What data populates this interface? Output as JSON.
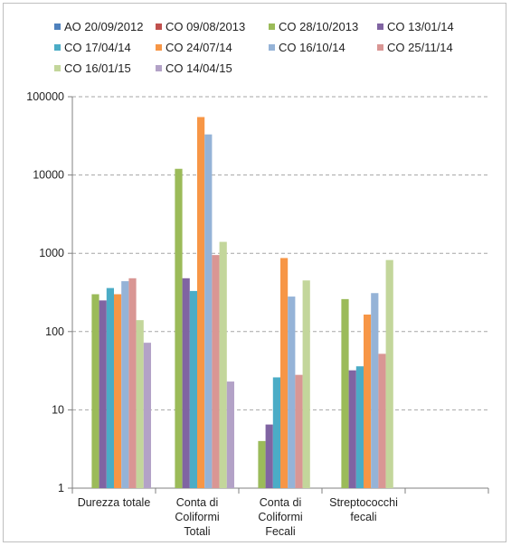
{
  "chart_data": {
    "type": "bar",
    "yscale": "log",
    "ylim": [
      1,
      100000
    ],
    "yticks": [
      "1",
      "10",
      "100",
      "1000",
      "10000",
      "100000"
    ],
    "grid": "horizontal-dashed",
    "legend_position": "top",
    "categories": [
      [
        "Durezza totale"
      ],
      [
        "Conta di",
        "Coliformi",
        "Totali"
      ],
      [
        "Conta di",
        "Coliformi",
        "Fecali"
      ],
      [
        "Streptococchi",
        "fecali"
      ]
    ],
    "series": [
      {
        "name": "AO 20/09/2012",
        "color": "#4f81bd",
        "values": [
          null,
          null,
          null,
          null
        ]
      },
      {
        "name": "CO 09/08/2013",
        "color": "#c0504d",
        "values": [
          null,
          null,
          null,
          null
        ]
      },
      {
        "name": "CO 28/10/2013",
        "color": "#9bbb59",
        "values": [
          300,
          12000,
          4,
          260
        ]
      },
      {
        "name": "CO 13/01/14",
        "color": "#8064a2",
        "values": [
          250,
          480,
          6.5,
          32
        ]
      },
      {
        "name": "CO 17/04/14",
        "color": "#4bacc6",
        "values": [
          360,
          330,
          26,
          36
        ]
      },
      {
        "name": "CO 24/07/14",
        "color": "#f79646",
        "values": [
          300,
          55000,
          870,
          165
        ]
      },
      {
        "name": "CO 16/10/14",
        "color": "#95b3d7",
        "values": [
          440,
          33000,
          280,
          310
        ]
      },
      {
        "name": "CO 25/11/14",
        "color": "#d99694",
        "values": [
          480,
          950,
          28,
          52
        ]
      },
      {
        "name": "CO 16/01/15",
        "color": "#c3d69b",
        "values": [
          140,
          1400,
          450,
          820
        ]
      },
      {
        "name": "CO 14/04/15",
        "color": "#b3a2c7",
        "values": [
          72,
          23,
          null,
          null
        ]
      }
    ]
  }
}
